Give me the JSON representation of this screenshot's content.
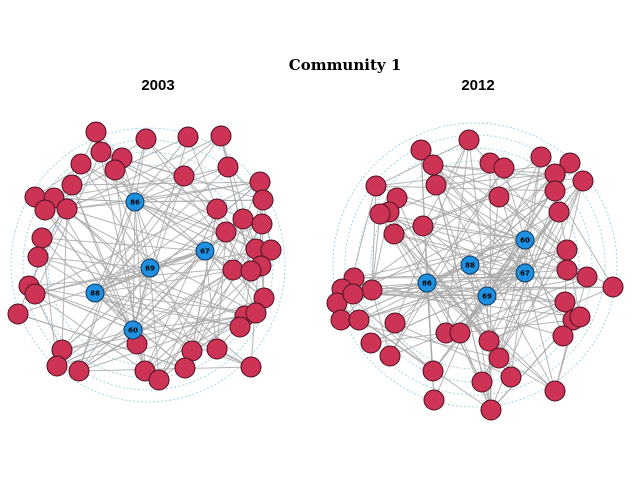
{
  "title": "Community 1",
  "colors": {
    "red_node": "#cc3355",
    "blue_node": "#1f8fe0",
    "edge": "#a8a8a8",
    "ring": "#8ecbe8"
  },
  "networks": [
    {
      "label": "2003",
      "hub_labels": [
        "86",
        "67",
        "69",
        "88",
        "60"
      ]
    },
    {
      "label": "2012",
      "hub_labels": [
        "60",
        "88",
        "86",
        "67",
        "69"
      ]
    }
  ]
}
